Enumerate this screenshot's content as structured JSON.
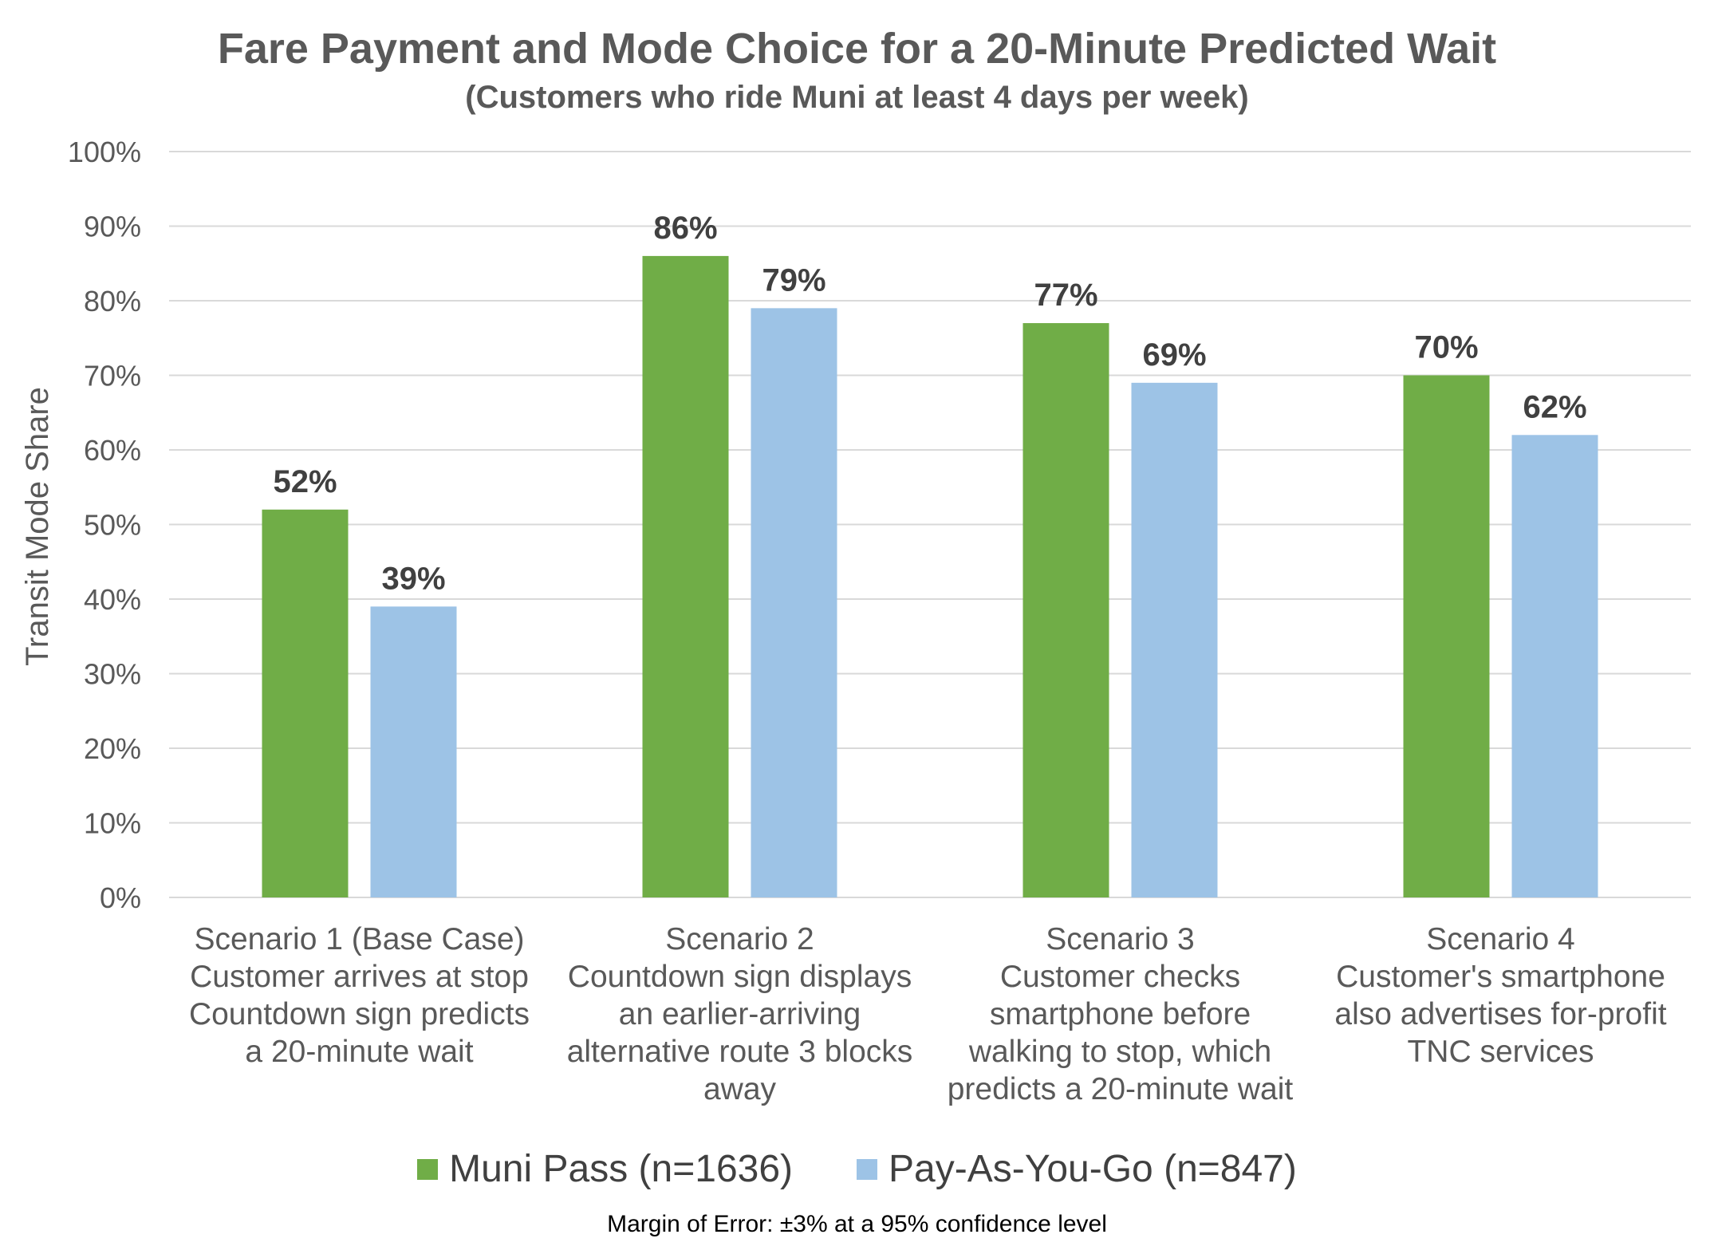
{
  "chart_data": {
    "type": "bar",
    "title": "Fare Payment and Mode Choice for a 20-Minute Predicted Wait",
    "subtitle": "(Customers who ride Muni at least 4 days per week)",
    "ylabel": "Transit Mode Share",
    "ylim": [
      0,
      100
    ],
    "yticks": [
      "0%",
      "10%",
      "20%",
      "30%",
      "40%",
      "50%",
      "60%",
      "70%",
      "80%",
      "90%",
      "100%"
    ],
    "grid": true,
    "legend_position": "bottom",
    "categories": [
      [
        "Scenario 1 (Base Case)",
        "Customer arrives at stop",
        "Countdown sign predicts",
        "a 20-minute wait"
      ],
      [
        "Scenario 2",
        "Countdown sign displays",
        "an earlier-arriving",
        "alternative route 3 blocks",
        "away"
      ],
      [
        "Scenario 3",
        "Customer checks",
        "smartphone before",
        "walking to stop, which",
        "predicts a 20-minute wait"
      ],
      [
        "Scenario 4",
        "Customer's smartphone",
        "also advertises for-profit",
        "TNC services"
      ]
    ],
    "series": [
      {
        "name": "Muni Pass (n=1636)",
        "values": [
          52,
          86,
          77,
          70
        ],
        "labels": [
          "52%",
          "86%",
          "77%",
          "70%"
        ],
        "color": "#70AD47"
      },
      {
        "name": "Pay-As-You-Go (n=847)",
        "values": [
          39,
          79,
          69,
          62
        ],
        "labels": [
          "39%",
          "79%",
          "69%",
          "62%"
        ],
        "color": "#9DC3E6"
      }
    ],
    "footnote": "Margin of Error: ±3% at a 95% confidence level",
    "gridline_color": "#D9D9D9",
    "text_color": "#595959"
  }
}
